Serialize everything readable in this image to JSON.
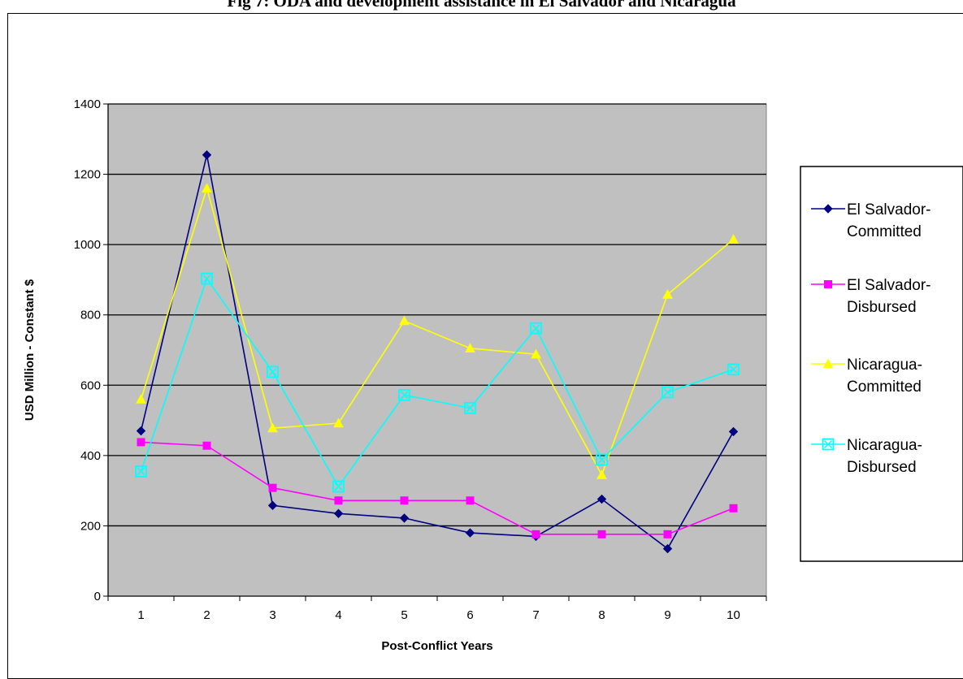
{
  "chart_data": {
    "type": "line",
    "title": "Fig 7: ODA and development assistance in El Salvador and Nicaragua",
    "xlabel": "Post-Conflict Years",
    "ylabel": "USD Million - Constant $",
    "x": [
      1,
      2,
      3,
      4,
      5,
      6,
      7,
      8,
      9,
      10
    ],
    "ylim": [
      0,
      1400
    ],
    "yticks": [
      0,
      200,
      400,
      600,
      800,
      1000,
      1200,
      1400
    ],
    "grid": "horizontal",
    "plot_background": "#c0c0c0",
    "legend_position": "right",
    "series": [
      {
        "name": "El Salvador-Committed",
        "name_lines": [
          "El Salvador-",
          "Committed"
        ],
        "color": "#000080",
        "marker": "diamond",
        "values": [
          470,
          1255,
          258,
          235,
          222,
          180,
          170,
          276,
          135,
          468
        ]
      },
      {
        "name": "El Salvador-Disbursed",
        "name_lines": [
          "El Salvador-",
          "Disbursed"
        ],
        "color": "#ff00ff",
        "marker": "square",
        "values": [
          438,
          428,
          308,
          272,
          272,
          272,
          176,
          176,
          176,
          250
        ]
      },
      {
        "name": "Nicaragua-Committed",
        "name_lines": [
          "Nicaragua-",
          "Committed"
        ],
        "color": "#ffff00",
        "marker": "triangle",
        "values": [
          560,
          1160,
          478,
          492,
          783,
          705,
          688,
          345,
          858,
          1015
        ]
      },
      {
        "name": "Nicaragua-Disbursed",
        "name_lines": [
          "Nicaragua-",
          "Disbursed"
        ],
        "color": "#00ffff",
        "marker": "boxed-x",
        "values": [
          355,
          903,
          638,
          312,
          572,
          535,
          762,
          388,
          580,
          645
        ]
      }
    ]
  }
}
